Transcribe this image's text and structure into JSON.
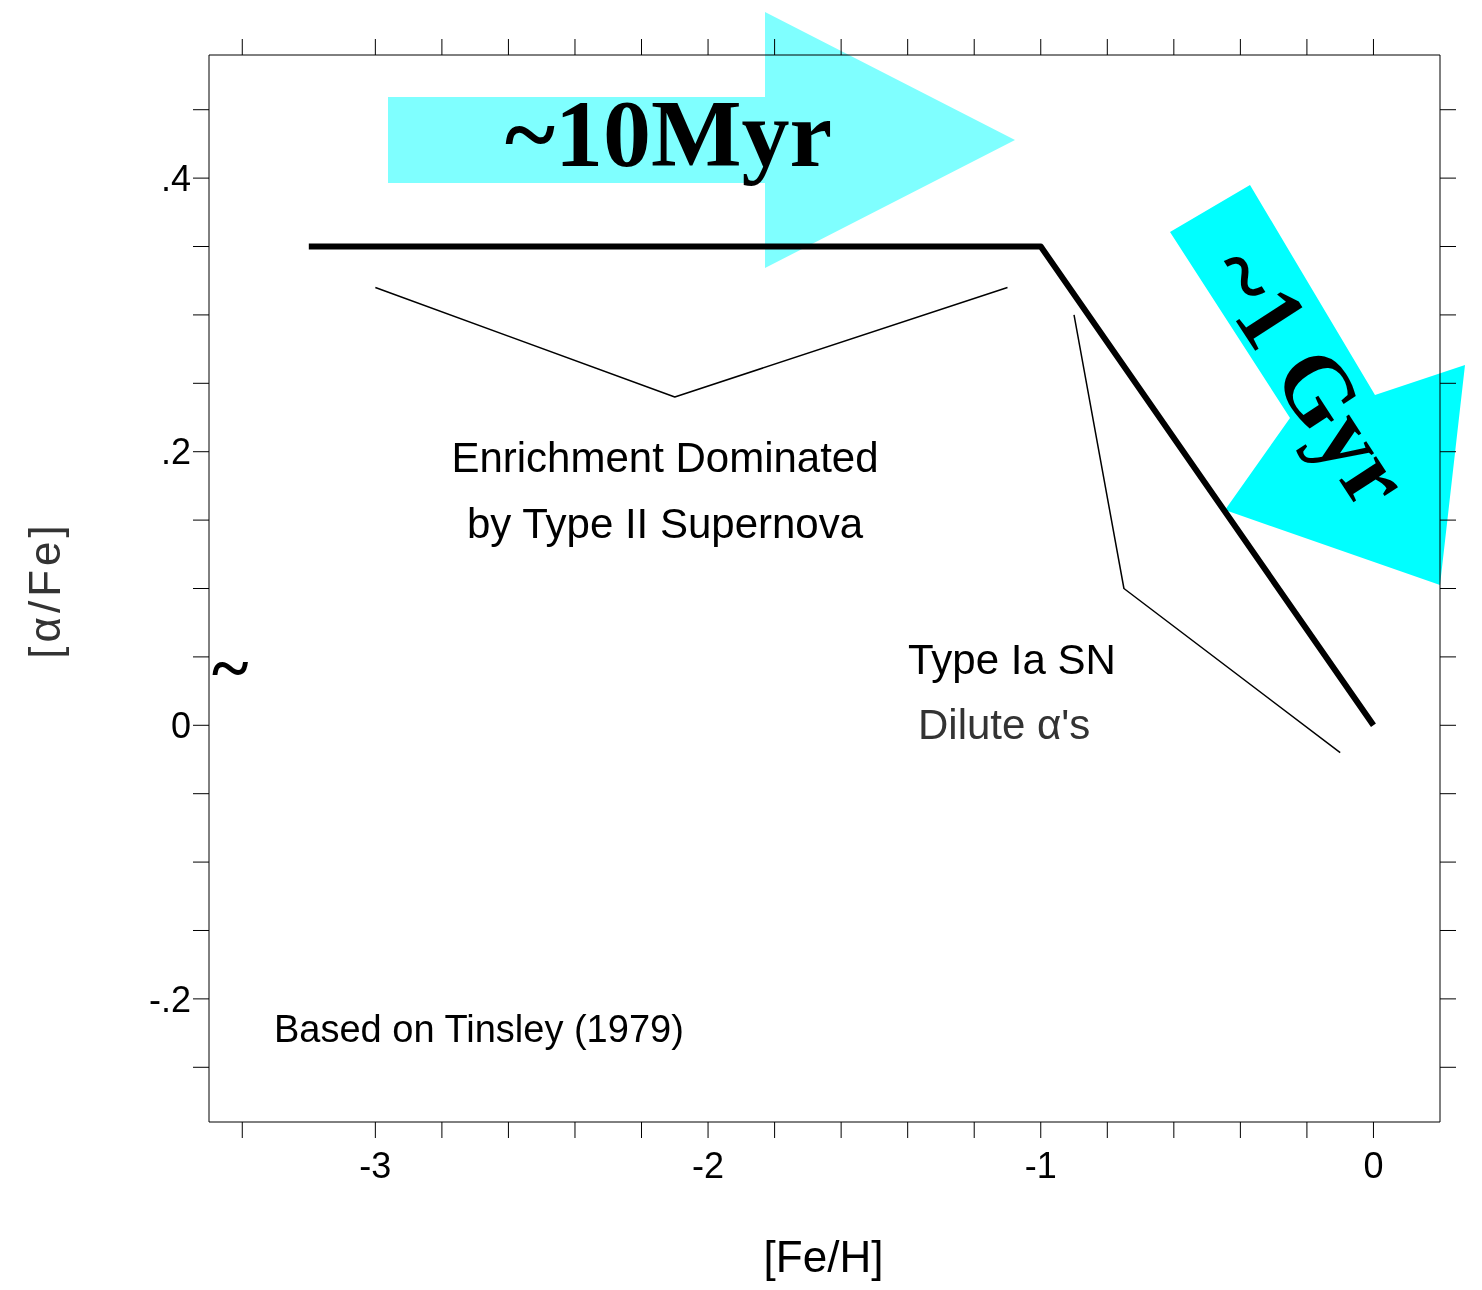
{
  "chart_data": {
    "type": "line",
    "xlabel": "[Fe/H]",
    "ylabel": "[α/Fe]",
    "xlim": [
      -3.5,
      0.2
    ],
    "ylim": [
      -0.29,
      0.49
    ],
    "xticks": [
      {
        "value": -3.4,
        "label": null
      },
      -3,
      {
        "value": -2.8,
        "label": null
      },
      {
        "value": -2.6,
        "label": null
      },
      {
        "value": -2.4,
        "label": null
      },
      {
        "value": -2.2,
        "label": null
      },
      -2,
      {
        "value": -1.8,
        "label": null
      },
      {
        "value": -1.6,
        "label": null
      },
      {
        "value": -1.4,
        "label": null
      },
      {
        "value": -1.2,
        "label": null
      },
      -1,
      {
        "value": -0.8,
        "label": null
      },
      {
        "value": -0.6,
        "label": null
      },
      {
        "value": -0.4,
        "label": null
      },
      {
        "value": -0.2,
        "label": null
      },
      0
    ],
    "yticks": [
      {
        "value": -0.25,
        "label": null
      },
      {
        "value": -0.2,
        "label": "-.2"
      },
      {
        "value": -0.15,
        "label": null
      },
      {
        "value": -0.1,
        "label": null
      },
      {
        "value": -0.05,
        "label": null
      },
      0,
      {
        "value": 0.05,
        "label": null
      },
      {
        "value": 0.1,
        "label": null
      },
      {
        "value": 0.15,
        "label": null
      },
      {
        "value": 0.2,
        "label": ".2"
      },
      {
        "value": 0.25,
        "label": null
      },
      {
        "value": 0.3,
        "label": null
      },
      {
        "value": 0.35,
        "label": null
      },
      {
        "value": 0.4,
        "label": ".4"
      },
      {
        "value": 0.45,
        "label": null
      }
    ],
    "marker": "none",
    "series": [
      {
        "color": "#000000",
        "x": [
          -3.2,
          -1,
          0
        ],
        "values": [
          0.35,
          0.35,
          0
        ]
      },
      {
        "color": "#000000",
        "x": [
          -3.0,
          -2.1,
          -1.1
        ],
        "values": [
          0.32,
          0.24,
          0.32
        ]
      },
      {
        "color": "#000000",
        "x": [
          -0.9,
          -0.75,
          -0.1
        ],
        "values": [
          0.3,
          0.1,
          -0.02
        ]
      }
    ],
    "annotations": [
      "~10Myr",
      "~1 Gyr",
      "Enrichment Dominated by Type II Supernova",
      "Type Ia SN",
      "Dilute α's",
      "Based on Tinsley (1979)",
      "~"
    ]
  }
}
